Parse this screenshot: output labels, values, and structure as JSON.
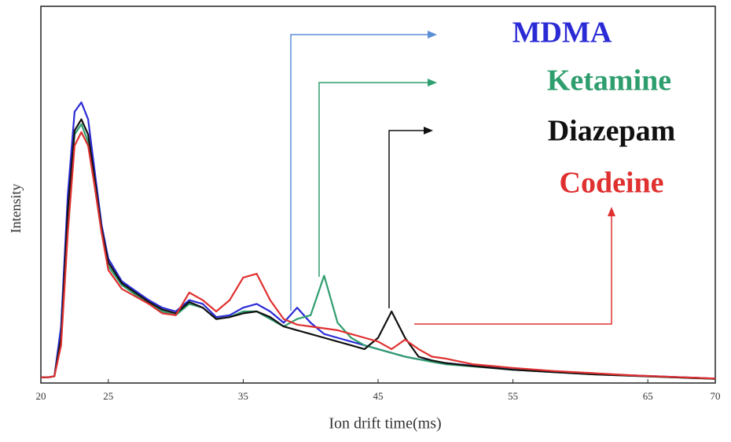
{
  "chart_data": {
    "type": "line",
    "xlabel": "Ion drift time(ms)",
    "ylabel": "Intensity",
    "xlim": [
      20,
      70
    ],
    "xticks": [
      20,
      25,
      35,
      45,
      55,
      65,
      70
    ],
    "ylim": [
      0,
      100
    ],
    "x": [
      20,
      20.5,
      21,
      21.5,
      22,
      22.5,
      23,
      23.5,
      24,
      24.5,
      25,
      26,
      27,
      28,
      29,
      30,
      31,
      32,
      33,
      34,
      35,
      36,
      37,
      38,
      39,
      40,
      41,
      42,
      43,
      44,
      45,
      46,
      47,
      48,
      49,
      50,
      52,
      55,
      58,
      61,
      64,
      67,
      70
    ],
    "series": [
      {
        "name": "MDMA",
        "color": "#2b2bd6",
        "values": [
          1.5,
          1.5,
          1.8,
          15,
          50,
          72,
          74.5,
          70,
          56,
          42,
          33,
          27,
          24.5,
          22,
          20,
          19,
          22,
          21,
          17.5,
          18,
          20,
          21,
          19,
          16,
          20,
          16,
          13,
          12,
          11,
          10,
          9,
          8,
          7,
          6.3,
          5.8,
          5.3,
          4.6,
          3.6,
          3,
          2.4,
          2,
          1.6,
          1.2
        ]
      },
      {
        "name": "Ketamine",
        "color": "#2f9e6e",
        "values": [
          1.5,
          1.5,
          1.8,
          12,
          45,
          66,
          68.7,
          64,
          52,
          40,
          31,
          26,
          23.5,
          21,
          19,
          18,
          21,
          20,
          17,
          17.5,
          19,
          19,
          17,
          15,
          17,
          18,
          28.5,
          16,
          12,
          10,
          9,
          8,
          7,
          6.3,
          5.6,
          5,
          4.4,
          3.5,
          2.9,
          2.3,
          1.9,
          1.5,
          1.1
        ]
      },
      {
        "name": "Diazepam",
        "color": "#111111",
        "values": [
          1.5,
          1.5,
          1.8,
          12,
          46,
          67,
          70,
          66,
          54,
          41,
          32,
          26.5,
          24,
          21.5,
          19.5,
          18.5,
          21.5,
          20,
          17,
          17.5,
          18.5,
          19,
          17.5,
          15,
          14,
          13,
          12,
          11,
          10,
          9,
          12,
          19,
          12,
          7,
          6,
          5.3,
          4.5,
          3.5,
          2.9,
          2.3,
          1.9,
          1.5,
          1.1
        ]
      },
      {
        "name": "Codeine",
        "color": "#e03030",
        "values": [
          1.5,
          1.5,
          1.8,
          10,
          40,
          63,
          66.6,
          63,
          52,
          40,
          30,
          25,
          23,
          21,
          18.5,
          18,
          24,
          22,
          19,
          22,
          28,
          29,
          22,
          17,
          15.5,
          15,
          14.5,
          14,
          13,
          12,
          11,
          9,
          11.5,
          9,
          7,
          6.5,
          5,
          4,
          3.2,
          2.6,
          2,
          1.6,
          1.2
        ]
      }
    ]
  }
}
